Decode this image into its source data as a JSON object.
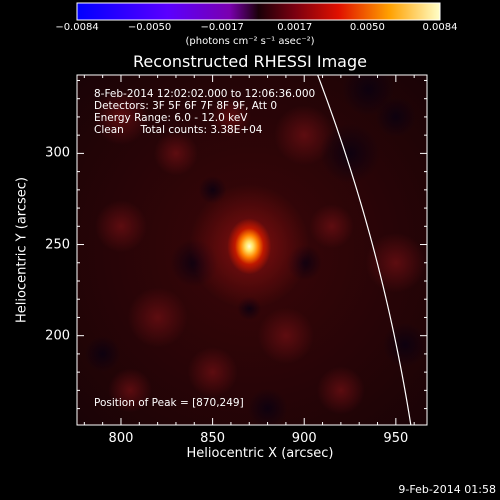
{
  "chart_data": {
    "type": "heatmap",
    "title": "Reconstructed RHESSI Image",
    "xlabel": "Heliocentric X (arcsec)",
    "ylabel": "Heliocentric Y (arcsec)",
    "xlim": [
      776,
      967
    ],
    "ylim": [
      151,
      343
    ],
    "xticks": [
      "800",
      "850",
      "900",
      "950"
    ],
    "yticks": [
      "200",
      "250",
      "300"
    ],
    "colorbar": {
      "min": -0.0084,
      "max": 0.0084,
      "ticks": [
        "−0.0084",
        "−0.0050",
        "−0.0017",
        "0.0017",
        "0.0050",
        "0.0084"
      ],
      "unit": "(photons cm⁻² s⁻¹ asec⁻²)"
    },
    "info_lines": [
      "8-Feb-2014 12:02:02.000 to 12:06:36.000",
      "Detectors: 3F 5F 6F 7F 8F 9F, Att 0",
      "Energy Range: 6.0 - 12.0 keV",
      "Clean     Total counts: 3.38E+04"
    ],
    "peak_label": "Position of Peak = [870,249]",
    "peak": [
      870,
      249
    ],
    "limb_color": "#ffffff"
  },
  "timestamp": "9-Feb-2014 01:58"
}
